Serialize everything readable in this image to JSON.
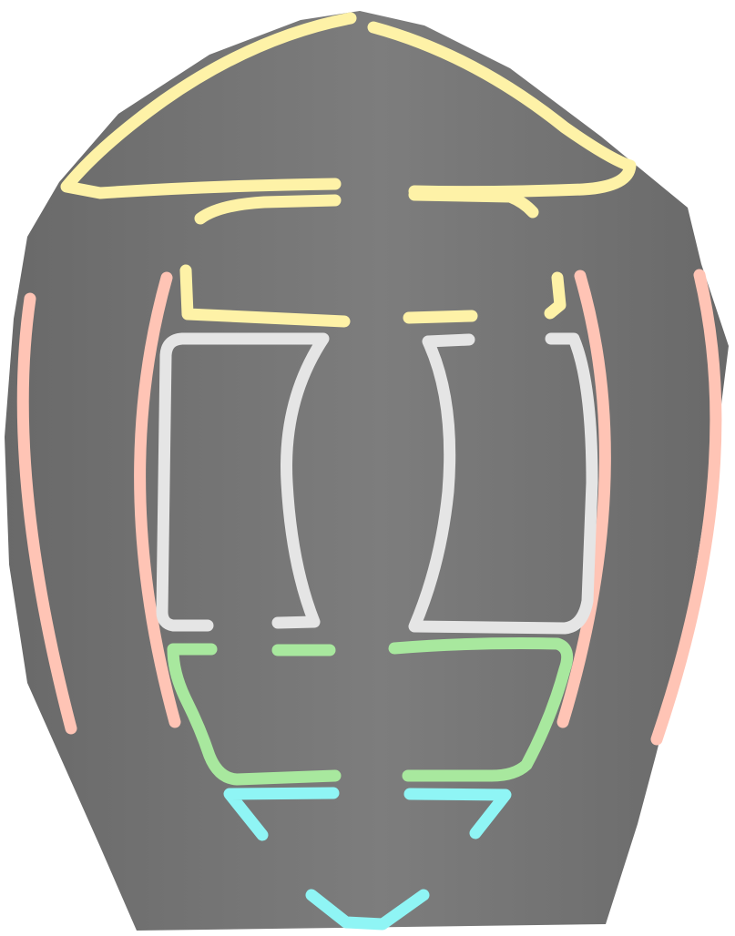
{
  "colors": {
    "background": "#ffffff",
    "body_dark": "#696969",
    "body_light": "#7d7d7d",
    "yellow": "#fef2a7",
    "salmon": "#ffc4b5",
    "light_gray": "#e5e5e5",
    "green": "#a8e89e",
    "cyan": "#8ff5f5"
  }
}
